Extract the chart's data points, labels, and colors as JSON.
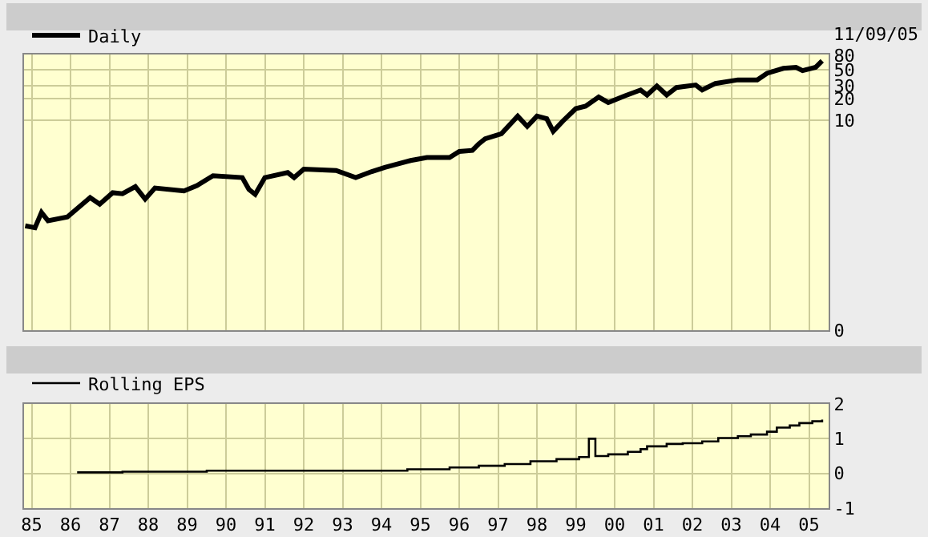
{
  "chart_data": [
    {
      "type": "line",
      "log": true,
      "grid": true,
      "legend": "top left",
      "tick_labels": "y",
      "annotations": [
        "11/09/05"
      ],
      "xlim": [
        "1985-04-20",
        "2006-01-01"
      ],
      "xticks": [
        {
          "value": "1985-07-01",
          "label": null
        },
        {
          "value": "1986-07-01",
          "label": null
        },
        {
          "value": "1987-07-01",
          "label": null
        },
        {
          "value": "1988-07-01",
          "label": null
        },
        {
          "value": "1989-07-01",
          "label": null
        },
        {
          "value": "1990-07-01",
          "label": null
        },
        {
          "value": "1991-07-01",
          "label": null
        },
        {
          "value": "1992-07-01",
          "label": null
        },
        {
          "value": "1993-07-01",
          "label": null
        },
        {
          "value": "1994-07-01",
          "label": null
        },
        {
          "value": "1995-07-01",
          "label": null
        },
        {
          "value": "1996-07-01",
          "label": null
        },
        {
          "value": "1997-07-01",
          "label": null
        },
        {
          "value": "1998-07-01",
          "label": null
        },
        {
          "value": "1999-07-01",
          "label": null
        },
        {
          "value": "2000-07-01",
          "label": null
        },
        {
          "value": "2001-07-01",
          "label": null
        },
        {
          "value": "2002-07-01",
          "label": null
        },
        {
          "value": "2003-07-01",
          "label": null
        },
        {
          "value": "2004-07-01",
          "label": null
        },
        {
          "value": "2005-07-01",
          "label": null
        }
      ],
      "ylim": [
        0.012,
        82
      ],
      "yticks": [
        {
          "value": 0.012,
          "label": "0"
        },
        10,
        20,
        30,
        50,
        80
      ],
      "series": [
        {
          "name": "Daily",
          "color": "#000000",
          "x": [
            "1985-05",
            "1985-08",
            "1985-10",
            "1985-12",
            "1986-06",
            "1987-01",
            "1987-04",
            "1987-08",
            "1987-11",
            "1988-03",
            "1988-06",
            "1988-09",
            "1989-06",
            "1989-10",
            "1990-03",
            "1990-12",
            "1991-02",
            "1991-04",
            "1991-07",
            "1992-02",
            "1992-04",
            "1992-07",
            "1993-05",
            "1993-11",
            "1994-04",
            "1994-08",
            "1995-04",
            "1995-09",
            "1996-04",
            "1996-07",
            "1996-11",
            "1997-01",
            "1997-03",
            "1997-08",
            "1998-01",
            "1998-04",
            "1998-07",
            "1998-10",
            "1998-12",
            "1999-03",
            "1999-07",
            "1999-10",
            "2000-02",
            "2000-05",
            "2000-10",
            "2001-03",
            "2001-05",
            "2001-08",
            "2001-11",
            "2002-02",
            "2002-08",
            "2002-10",
            "2003-02",
            "2003-09",
            "2004-03",
            "2004-06",
            "2004-11",
            "2005-03",
            "2005-05",
            "2005-09",
            "2005-11"
          ],
          "values": [
            0.34,
            0.32,
            0.52,
            0.4,
            0.45,
            0.84,
            0.68,
            0.98,
            0.95,
            1.19,
            0.8,
            1.14,
            1.04,
            1.23,
            1.69,
            1.59,
            1.09,
            0.93,
            1.59,
            1.87,
            1.59,
            2.09,
            2.0,
            1.59,
            1.93,
            2.2,
            2.75,
            3.03,
            3.03,
            3.67,
            3.8,
            4.7,
            5.5,
            6.5,
            11.4,
            8.2,
            11.4,
            10.5,
            7.0,
            9.7,
            14.5,
            15.7,
            21,
            17.6,
            21.7,
            26.3,
            22.4,
            29.9,
            22.4,
            28.5,
            30.9,
            26.3,
            32.4,
            36.4,
            36.4,
            44.9,
            52.6,
            54.4,
            48.9,
            54.4,
            66.9
          ]
        }
      ]
    },
    {
      "type": "step",
      "grid": true,
      "legend": "top left",
      "xlim": [
        "1985-04-20",
        "2006-01-01"
      ],
      "xticks": [
        {
          "value": "1985-07-01",
          "label": "85"
        },
        {
          "value": "1986-07-01",
          "label": "86"
        },
        {
          "value": "1987-07-01",
          "label": "87"
        },
        {
          "value": "1988-07-01",
          "label": "88"
        },
        {
          "value": "1989-07-01",
          "label": "89"
        },
        {
          "value": "1990-07-01",
          "label": "90"
        },
        {
          "value": "1991-07-01",
          "label": "91"
        },
        {
          "value": "1992-07-01",
          "label": "92"
        },
        {
          "value": "1993-07-01",
          "label": "93"
        },
        {
          "value": "1994-07-01",
          "label": "94"
        },
        {
          "value": "1995-07-01",
          "label": "95"
        },
        {
          "value": "1996-07-01",
          "label": "96"
        },
        {
          "value": "1997-07-01",
          "label": "97"
        },
        {
          "value": "1998-07-01",
          "label": "98"
        },
        {
          "value": "1999-07-01",
          "label": "99"
        },
        {
          "value": "2000-07-01",
          "label": "00"
        },
        {
          "value": "2001-07-01",
          "label": "01"
        },
        {
          "value": "2002-07-01",
          "label": "02"
        },
        {
          "value": "2003-07-01",
          "label": "03"
        },
        {
          "value": "2004-07-01",
          "label": "04"
        },
        {
          "value": "2005-07-01",
          "label": "05"
        }
      ],
      "ylim": [
        -1,
        2
      ],
      "yticks": [
        -1,
        0,
        1,
        2
      ],
      "series": [
        {
          "name": "Rolling EPS",
          "color": "#000000",
          "x": [
            "1986-09",
            "1987-11",
            "1990-01",
            "1995-03",
            "1996-04",
            "1997-01",
            "1997-09",
            "1998-05",
            "1999-01",
            "1999-08",
            "1999-11",
            "2000-01",
            "2000-05",
            "2000-11",
            "2001-03",
            "2001-05",
            "2001-11",
            "2002-04",
            "2002-10",
            "2003-03",
            "2003-09",
            "2004-01",
            "2004-06",
            "2004-09",
            "2005-01",
            "2005-04",
            "2005-08",
            "2005-11"
          ],
          "values": [
            0.03,
            0.05,
            0.08,
            0.12,
            0.17,
            0.22,
            0.27,
            0.35,
            0.41,
            0.47,
            1.0,
            0.5,
            0.55,
            0.62,
            0.7,
            0.78,
            0.85,
            0.87,
            0.92,
            1.02,
            1.07,
            1.12,
            1.2,
            1.32,
            1.38,
            1.45,
            1.5,
            1.55
          ]
        }
      ]
    }
  ]
}
